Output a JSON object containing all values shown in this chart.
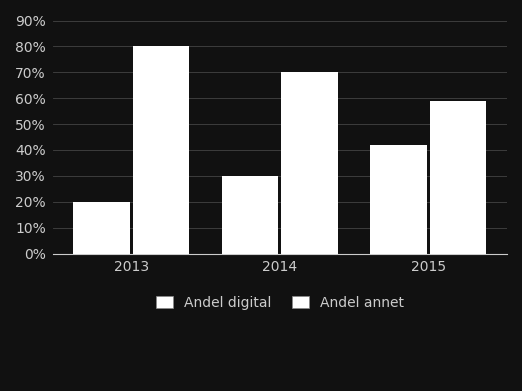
{
  "years": [
    "2013",
    "2014",
    "2015"
  ],
  "andel_digital": [
    0.2,
    0.3,
    0.42
  ],
  "andel_annet": [
    0.8,
    0.7,
    0.59
  ],
  "color_digital": "#ffffff",
  "color_annet": "#ffffff",
  "background_color": "#111111",
  "text_color": "#cccccc",
  "grid_color": "#444444",
  "ylim": [
    0,
    0.9
  ],
  "yticks": [
    0.0,
    0.1,
    0.2,
    0.3,
    0.4,
    0.5,
    0.6,
    0.7,
    0.8,
    0.9
  ],
  "ytick_labels": [
    "0%",
    "10%",
    "20%",
    "30%",
    "40%",
    "50%",
    "60%",
    "70%",
    "80%",
    "90%"
  ],
  "bar_width": 0.38,
  "bar_gap": 0.02,
  "legend_label_digital": "Andel digital",
  "legend_label_annet": "Andel annet",
  "font_size": 10,
  "legend_font_size": 10
}
